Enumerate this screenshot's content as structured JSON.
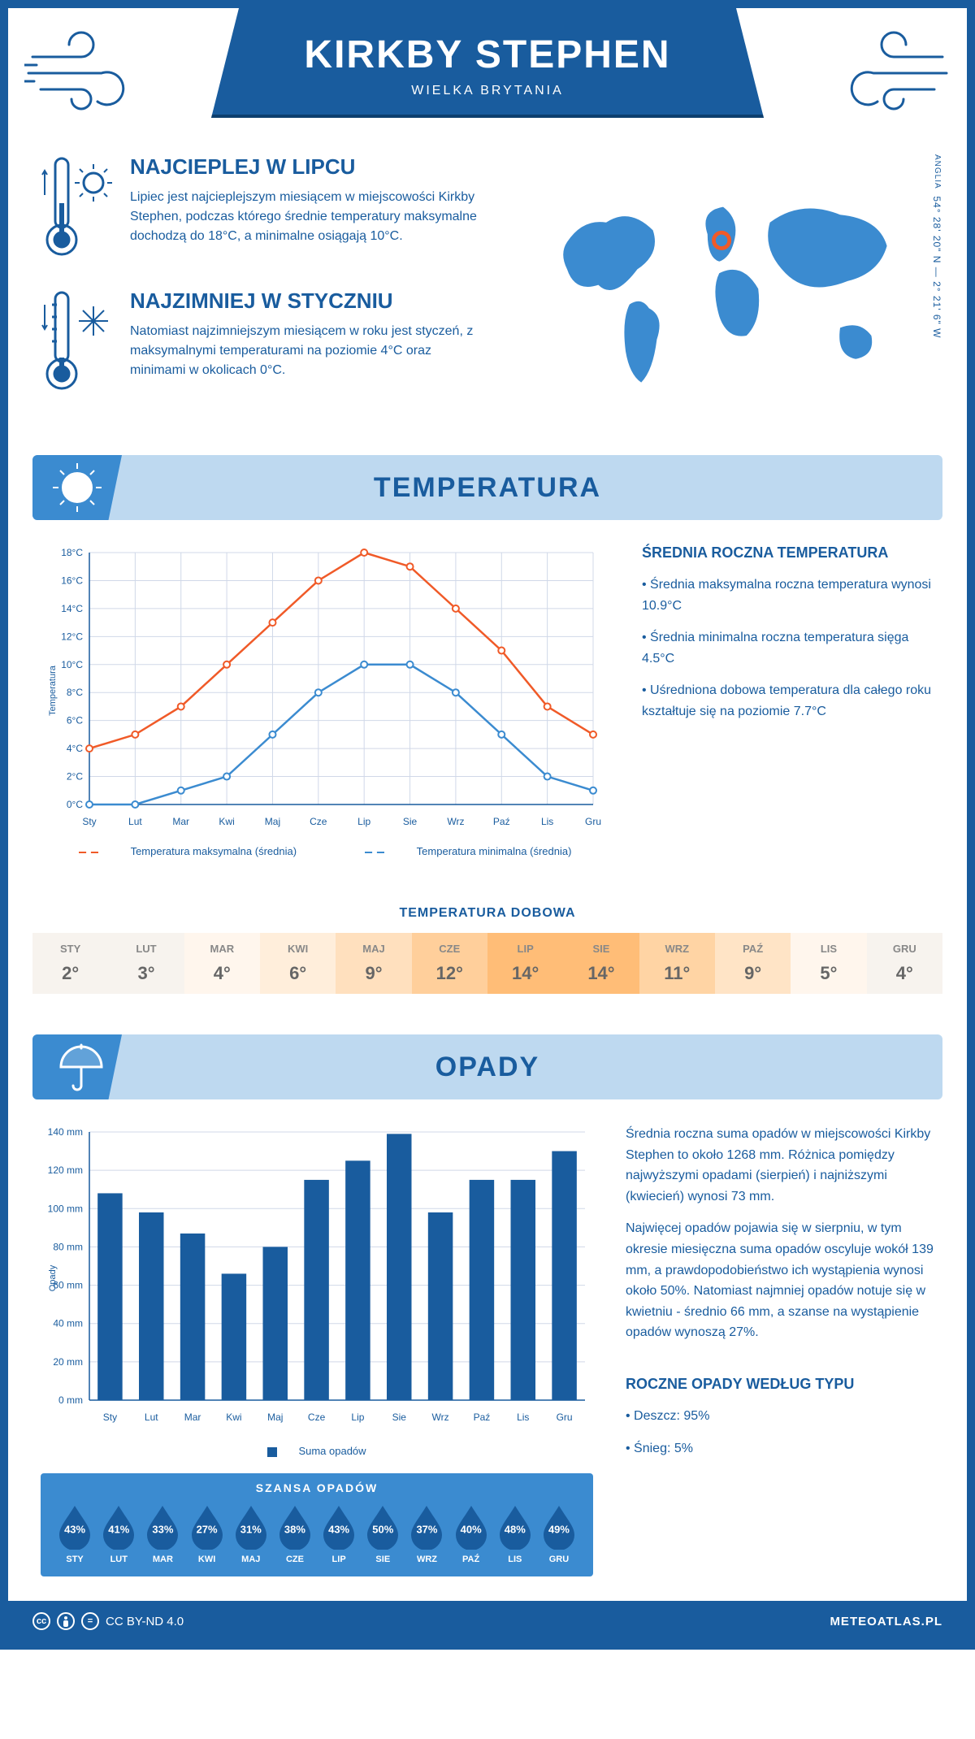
{
  "header": {
    "city": "KIRKBY STEPHEN",
    "country": "WIELKA BRYTANIA"
  },
  "coords": {
    "text": "54° 28' 20\" N — 2° 21' 6\" W",
    "region": "ANGLIA"
  },
  "intro": {
    "hot": {
      "title": "NAJCIEPLEJ W LIPCU",
      "text": "Lipiec jest najcieplejszym miesiącem w miejscowości Kirkby Stephen, podczas którego średnie temperatury maksymalne dochodzą do 18°C, a minimalne osiągają 10°C."
    },
    "cold": {
      "title": "NAJZIMNIEJ W STYCZNIU",
      "text": "Natomiast najzimniejszym miesiącem w roku jest styczeń, z maksymalnymi temperaturami na poziomie 4°C oraz minimami w okolicach 0°C."
    }
  },
  "temperature": {
    "section_title": "TEMPERATURA",
    "months": [
      "Sty",
      "Lut",
      "Mar",
      "Kwi",
      "Maj",
      "Cze",
      "Lip",
      "Sie",
      "Wrz",
      "Paź",
      "Lis",
      "Gru"
    ],
    "series_max": {
      "label": "Temperatura maksymalna (średnia)",
      "color": "#f05a28",
      "values": [
        4,
        5,
        7,
        10,
        13,
        16,
        18,
        17,
        14,
        11,
        7,
        5
      ]
    },
    "series_min": {
      "label": "Temperatura minimalna (średnia)",
      "color": "#3b8bd0",
      "values": [
        0,
        0,
        1,
        2,
        5,
        8,
        10,
        10,
        8,
        5,
        2,
        1
      ]
    },
    "y_axis": {
      "min": 0,
      "max": 18,
      "step": 2,
      "label": "Temperatura",
      "unit": "°C"
    },
    "grid_color": "#d0d8e8",
    "info_title": "ŚREDNIA ROCZNA TEMPERATURA",
    "info_bullets": [
      "• Średnia maksymalna roczna temperatura wynosi 10.9°C",
      "• Średnia minimalna roczna temperatura sięga 4.5°C",
      "• Uśredniona dobowa temperatura dla całego roku kształtuje się na poziomie 7.7°C"
    ],
    "daily_title": "TEMPERATURA DOBOWA",
    "daily": {
      "months": [
        "STY",
        "LUT",
        "MAR",
        "KWI",
        "MAJ",
        "CZE",
        "LIP",
        "SIE",
        "WRZ",
        "PAŹ",
        "LIS",
        "GRU"
      ],
      "values": [
        "2°",
        "3°",
        "4°",
        "6°",
        "9°",
        "12°",
        "14°",
        "14°",
        "11°",
        "9°",
        "5°",
        "4°"
      ],
      "cell_bg": [
        "#f7f3ee",
        "#f7f3ee",
        "#fff6ed",
        "#ffeedb",
        "#ffe0be",
        "#ffcf9b",
        "#ffbd77",
        "#ffbd77",
        "#ffd4a4",
        "#ffe4c6",
        "#fff6ed",
        "#f7f3ee"
      ]
    }
  },
  "precipitation": {
    "section_title": "OPADY",
    "months": [
      "Sty",
      "Lut",
      "Mar",
      "Kwi",
      "Maj",
      "Cze",
      "Lip",
      "Sie",
      "Wrz",
      "Paź",
      "Lis",
      "Gru"
    ],
    "bars": {
      "label": "Suma opadów",
      "color": "#195c9e",
      "values": [
        108,
        98,
        87,
        66,
        80,
        115,
        125,
        139,
        98,
        115,
        115,
        130
      ]
    },
    "y_axis": {
      "min": 0,
      "max": 140,
      "step": 20,
      "label": "Opady",
      "unit": " mm"
    },
    "info_p1": "Średnia roczna suma opadów w miejscowości Kirkby Stephen to około 1268 mm. Różnica pomiędzy najwyższymi opadami (sierpień) i najniższymi (kwiecień) wynosi 73 mm.",
    "info_p2": "Najwięcej opadów pojawia się w sierpniu, w tym okresie miesięczna suma opadów oscyluje wokół 139 mm, a prawdopodobieństwo ich wystąpienia wynosi około 50%. Natomiast najmniej opadów notuje się w kwietniu - średnio 66 mm, a szanse na wystąpienie opadów wynoszą 27%.",
    "chance_title": "SZANSA OPADÓW",
    "chance": {
      "months": [
        "STY",
        "LUT",
        "MAR",
        "KWI",
        "MAJ",
        "CZE",
        "LIP",
        "SIE",
        "WRZ",
        "PAŹ",
        "LIS",
        "GRU"
      ],
      "pct": [
        "43%",
        "41%",
        "33%",
        "27%",
        "31%",
        "38%",
        "43%",
        "50%",
        "37%",
        "40%",
        "48%",
        "49%"
      ]
    },
    "type_title": "ROCZNE OPADY WEDŁUG TYPU",
    "type_bullets": [
      "• Deszcz: 95%",
      "• Śnieg: 5%"
    ]
  },
  "footer": {
    "license": "CC BY-ND 4.0",
    "site": "METEOATLAS.PL"
  },
  "colors": {
    "primary": "#195c9e",
    "light": "#bed9f0",
    "mid": "#3b8bd0"
  }
}
